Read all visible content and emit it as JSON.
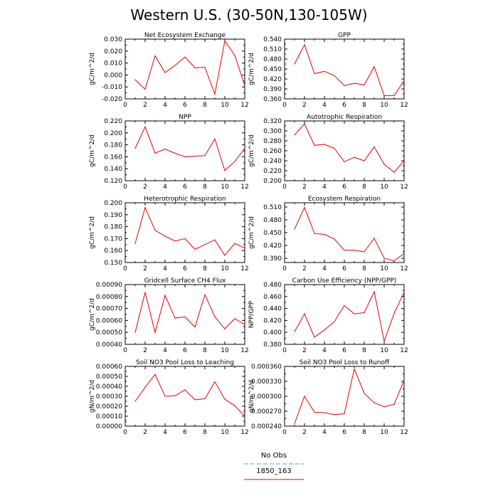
{
  "figure": {
    "title": "Western U.S. (30-50N,130-105W)"
  },
  "legend": {
    "items": [
      {
        "label": "No Obs",
        "color": "#8080ff",
        "dash": true
      },
      {
        "label": "1850_163",
        "color": "#e60000",
        "dash": false
      }
    ]
  },
  "chart_data": [
    {
      "type": "line",
      "title": "Net Ecosystem Exchange",
      "ylabel": "gC/m^2/d",
      "xlim": [
        0,
        12
      ],
      "ylim": [
        -0.02,
        0.03
      ],
      "xticks": [
        "0",
        "2",
        "4",
        "6",
        "8",
        "10",
        "12"
      ],
      "yticks": [
        "-0.020",
        "-0.010",
        "0.000",
        "0.010",
        "0.020",
        "0.030"
      ],
      "x": [
        1,
        2,
        3,
        4,
        5,
        6,
        7,
        8,
        9,
        10,
        11,
        12
      ],
      "series": [
        {
          "color": "#e60000",
          "values": [
            -0.004,
            -0.012,
            0.016,
            0.002,
            0.008,
            0.015,
            0.006,
            0.0065,
            -0.016,
            0.0285,
            0.0165,
            -0.009
          ]
        }
      ]
    },
    {
      "type": "line",
      "title": "GPP",
      "ylabel": "gC/m^2/d",
      "xlim": [
        0,
        12
      ],
      "ylim": [
        0.36,
        0.54
      ],
      "xticks": [
        "0",
        "2",
        "4",
        "6",
        "8",
        "10",
        "12"
      ],
      "yticks": [
        "0.360",
        "0.390",
        "0.420",
        "0.450",
        "0.480",
        "0.510",
        "0.540"
      ],
      "x": [
        1,
        2,
        3,
        4,
        5,
        6,
        7,
        8,
        9,
        10,
        11,
        12
      ],
      "series": [
        {
          "color": "#e60000",
          "values": [
            0.465,
            0.523,
            0.436,
            0.443,
            0.43,
            0.4,
            0.407,
            0.402,
            0.457,
            0.37,
            0.37,
            0.415
          ]
        }
      ]
    },
    {
      "type": "line",
      "title": "NPP",
      "ylabel": "gC/m^2/d",
      "xlim": [
        0,
        12
      ],
      "ylim": [
        0.12,
        0.22
      ],
      "xticks": [
        "0",
        "2",
        "4",
        "6",
        "8",
        "10",
        "12"
      ],
      "yticks": [
        "0.120",
        "0.140",
        "0.160",
        "0.180",
        "0.200",
        "0.220"
      ],
      "x": [
        1,
        2,
        3,
        4,
        5,
        6,
        7,
        8,
        9,
        10,
        11,
        12
      ],
      "series": [
        {
          "color": "#e60000",
          "values": [
            0.174,
            0.21,
            0.166,
            0.173,
            0.166,
            0.16,
            0.161,
            0.162,
            0.19,
            0.137,
            0.152,
            0.174
          ]
        }
      ]
    },
    {
      "type": "line",
      "title": "Autotrophic Respiration",
      "ylabel": "gC/m^2/d",
      "xlim": [
        0,
        12
      ],
      "ylim": [
        0.2,
        0.32
      ],
      "xticks": [
        "0",
        "2",
        "4",
        "6",
        "8",
        "10",
        "12"
      ],
      "yticks": [
        "0.200",
        "0.220",
        "0.240",
        "0.260",
        "0.280",
        "0.300",
        "0.320"
      ],
      "x": [
        1,
        2,
        3,
        4,
        5,
        6,
        7,
        8,
        9,
        10,
        11,
        12
      ],
      "series": [
        {
          "color": "#e60000",
          "values": [
            0.292,
            0.314,
            0.271,
            0.273,
            0.265,
            0.238,
            0.247,
            0.24,
            0.268,
            0.233,
            0.217,
            0.24
          ]
        }
      ]
    },
    {
      "type": "line",
      "title": "Heterotrophic Respiration",
      "ylabel": "gC/m^2/d",
      "xlim": [
        0,
        12
      ],
      "ylim": [
        0.15,
        0.2
      ],
      "xticks": [
        "0",
        "2",
        "4",
        "6",
        "8",
        "10",
        "12"
      ],
      "yticks": [
        "0.150",
        "0.160",
        "0.170",
        "0.180",
        "0.190",
        "0.200"
      ],
      "x": [
        1,
        2,
        3,
        4,
        5,
        6,
        7,
        8,
        9,
        10,
        11,
        12
      ],
      "series": [
        {
          "color": "#e60000",
          "values": [
            0.166,
            0.196,
            0.177,
            0.172,
            0.168,
            0.17,
            0.161,
            0.165,
            0.169,
            0.156,
            0.166,
            0.162
          ]
        }
      ]
    },
    {
      "type": "line",
      "title": "Ecosystem Respiration",
      "ylabel": "gC/m^2/d",
      "xlim": [
        0,
        12
      ],
      "ylim": [
        0.38,
        0.52
      ],
      "xticks": [
        "0",
        "2",
        "4",
        "6",
        "8",
        "10",
        "12"
      ],
      "yticks": [
        "0.390",
        "0.420",
        "0.450",
        "0.480",
        "0.510"
      ],
      "x": [
        1,
        2,
        3,
        4,
        5,
        6,
        7,
        8,
        9,
        10,
        11,
        12
      ],
      "series": [
        {
          "color": "#e60000",
          "values": [
            0.458,
            0.509,
            0.448,
            0.446,
            0.435,
            0.409,
            0.409,
            0.405,
            0.437,
            0.39,
            0.384,
            0.401
          ]
        }
      ]
    },
    {
      "type": "line",
      "title": "Gridcell Surface CH4 Flux",
      "ylabel": "gC/m^2/d",
      "xlim": [
        0,
        12
      ],
      "ylim": [
        0.0004,
        0.0009
      ],
      "xticks": [
        "0",
        "2",
        "4",
        "6",
        "8",
        "10",
        "12"
      ],
      "yticks": [
        "0.00040",
        "0.00050",
        "0.00060",
        "0.00070",
        "0.00080",
        "0.00090"
      ],
      "x": [
        1,
        2,
        3,
        4,
        5,
        6,
        7,
        8,
        9,
        10,
        11,
        12
      ],
      "series": [
        {
          "color": "#e60000",
          "values": [
            0.0005,
            0.000835,
            0.0005,
            0.00081,
            0.00062,
            0.00063,
            0.000545,
            0.000815,
            0.00063,
            0.00053,
            0.000615,
            0.000565
          ]
        }
      ]
    },
    {
      "type": "line",
      "title": "Carbon Use Efficiency (NPP/GPP)",
      "ylabel": "NPP/GPP",
      "xlim": [
        0,
        12
      ],
      "ylim": [
        0.38,
        0.48
      ],
      "xticks": [
        "0",
        "2",
        "4",
        "6",
        "8",
        "10",
        "12"
      ],
      "yticks": [
        "0.380",
        "0.400",
        "0.420",
        "0.440",
        "0.460",
        "0.480"
      ],
      "x": [
        1,
        2,
        3,
        4,
        5,
        6,
        7,
        8,
        9,
        10,
        11,
        12
      ],
      "series": [
        {
          "color": "#e60000",
          "values": [
            0.401,
            0.431,
            0.392,
            0.404,
            0.418,
            0.445,
            0.431,
            0.433,
            0.468,
            0.385,
            0.432,
            0.467
          ]
        }
      ]
    },
    {
      "type": "line",
      "title": "Soil NO3 Pool Loss to Leaching",
      "ylabel": "gN/m^2/d",
      "xlim": [
        0,
        12
      ],
      "ylim": [
        0.0,
        0.0006
      ],
      "xticks": [
        "0",
        "2",
        "4",
        "6",
        "8",
        "10",
        "12"
      ],
      "yticks": [
        "0.00000",
        "0.00010",
        "0.00020",
        "0.00030",
        "0.00040",
        "0.00050",
        "0.00060"
      ],
      "x": [
        1,
        2,
        3,
        4,
        5,
        6,
        7,
        8,
        9,
        10,
        11,
        12
      ],
      "series": [
        {
          "color": "#e60000",
          "values": [
            0.00025,
            0.00039,
            0.00052,
            0.0003,
            0.000305,
            0.000365,
            0.000265,
            0.000275,
            0.000445,
            0.00027,
            0.000205,
            0.0001
          ]
        }
      ]
    },
    {
      "type": "line",
      "title": "Soil NO3 Pool Loss to Runoff",
      "ylabel": "gN/m^2/d",
      "xlim": [
        0,
        12
      ],
      "ylim": [
        0.00024,
        0.00036
      ],
      "xticks": [
        "0",
        "2",
        "4",
        "6",
        "8",
        "10",
        "12"
      ],
      "yticks": [
        "0.000240",
        "0.000270",
        "0.000300",
        "0.000330",
        "0.000360"
      ],
      "x": [
        1,
        2,
        3,
        4,
        5,
        6,
        7,
        8,
        9,
        10,
        11,
        12
      ],
      "series": [
        {
          "color": "#e60000",
          "values": [
            0.000245,
            0.0003,
            0.000268,
            0.000267,
            0.000263,
            0.000265,
            0.000355,
            0.000306,
            0.000287,
            0.000279,
            0.000284,
            0.000332
          ]
        }
      ]
    }
  ]
}
